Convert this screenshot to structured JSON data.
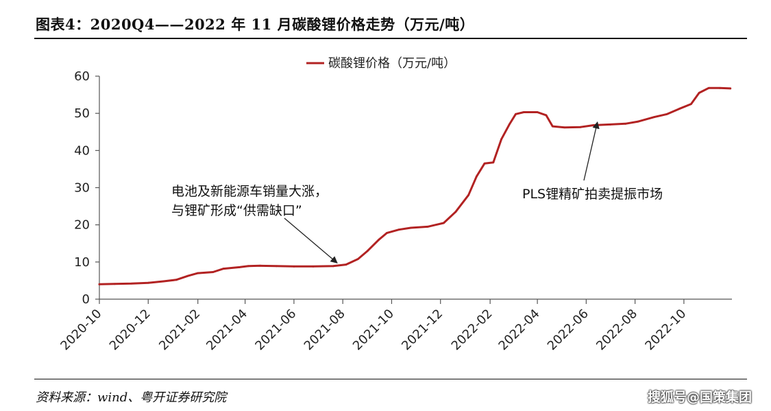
{
  "figure": {
    "title": "图表4：2020Q4——2022 年 11 月碳酸锂价格走势（万元/吨）",
    "source": "资料来源：wind、粤开证券研究院",
    "watermark": "搜狐号@国策集团"
  },
  "chart_data": {
    "type": "line",
    "title": "",
    "xlabel": "",
    "ylabel": "",
    "ylim": [
      0,
      60
    ],
    "yticks": [
      0,
      10,
      20,
      30,
      40,
      50,
      60
    ],
    "xlim": [
      "2020-10",
      "2022-11-30"
    ],
    "xticks": [
      "2020-10",
      "2020-12",
      "2021-02",
      "2021-04",
      "2021-06",
      "2021-08",
      "2021-10",
      "2021-12",
      "2022-02",
      "2022-04",
      "2022-06",
      "2022-08",
      "2022-10"
    ],
    "grid": false,
    "legend": {
      "position": "top",
      "entries": [
        "碳酸锂价格（万元/吨）"
      ]
    },
    "series": [
      {
        "name": "碳酸锂价格（万元/吨）",
        "color": "#b22222",
        "points": [
          [
            "2020-10-01",
            4.0
          ],
          [
            "2020-10-20",
            4.1
          ],
          [
            "2020-11-10",
            4.2
          ],
          [
            "2020-12-01",
            4.4
          ],
          [
            "2020-12-20",
            4.8
          ],
          [
            "2021-01-05",
            5.2
          ],
          [
            "2021-01-20",
            6.3
          ],
          [
            "2021-02-01",
            7.0
          ],
          [
            "2021-02-20",
            7.3
          ],
          [
            "2021-03-05",
            8.2
          ],
          [
            "2021-03-25",
            8.6
          ],
          [
            "2021-04-05",
            8.9
          ],
          [
            "2021-04-20",
            9.0
          ],
          [
            "2021-05-10",
            8.9
          ],
          [
            "2021-06-01",
            8.8
          ],
          [
            "2021-06-25",
            8.8
          ],
          [
            "2021-07-20",
            8.9
          ],
          [
            "2021-08-05",
            9.3
          ],
          [
            "2021-08-20",
            10.8
          ],
          [
            "2021-09-01",
            13.0
          ],
          [
            "2021-09-15",
            16.0
          ],
          [
            "2021-09-25",
            17.8
          ],
          [
            "2021-10-10",
            18.7
          ],
          [
            "2021-10-25",
            19.2
          ],
          [
            "2021-11-15",
            19.5
          ],
          [
            "2021-12-05",
            20.5
          ],
          [
            "2021-12-20",
            23.5
          ],
          [
            "2022-01-05",
            28.0
          ],
          [
            "2022-01-15",
            33.0
          ],
          [
            "2022-01-25",
            36.5
          ],
          [
            "2022-02-05",
            36.8
          ],
          [
            "2022-02-15",
            43.0
          ],
          [
            "2022-02-25",
            47.0
          ],
          [
            "2022-03-05",
            49.8
          ],
          [
            "2022-03-15",
            50.3
          ],
          [
            "2022-04-01",
            50.3
          ],
          [
            "2022-04-12",
            49.5
          ],
          [
            "2022-04-20",
            46.5
          ],
          [
            "2022-05-05",
            46.2
          ],
          [
            "2022-05-25",
            46.3
          ],
          [
            "2022-06-10",
            46.8
          ],
          [
            "2022-07-01",
            47.0
          ],
          [
            "2022-07-20",
            47.2
          ],
          [
            "2022-08-05",
            47.8
          ],
          [
            "2022-08-25",
            49.0
          ],
          [
            "2022-09-10",
            49.8
          ],
          [
            "2022-09-25",
            51.2
          ],
          [
            "2022-10-10",
            52.5
          ],
          [
            "2022-10-20",
            55.5
          ],
          [
            "2022-11-01",
            56.8
          ],
          [
            "2022-11-15",
            56.8
          ],
          [
            "2022-11-28",
            56.7
          ]
        ]
      }
    ],
    "annotations": [
      {
        "lines": [
          "电池及新能源车销量大涨，",
          "与锂矿形成“供需缺口”"
        ],
        "arrow_to": [
          "2021-07-25",
          9.0
        ]
      },
      {
        "lines": [
          "PLS锂精矿拍卖提振市场"
        ],
        "arrow_to": [
          "2022-06-15",
          46.9
        ]
      }
    ]
  }
}
